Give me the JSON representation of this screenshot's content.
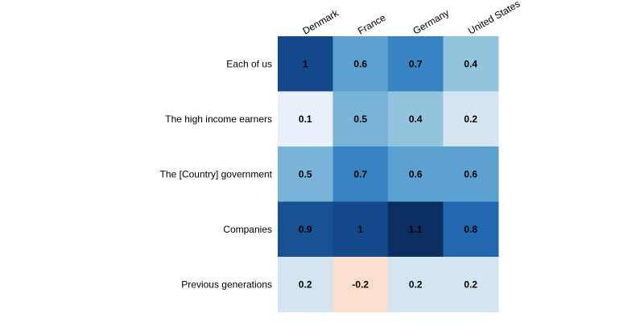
{
  "chart_data": {
    "type": "heatmap",
    "title": "",
    "xlabel": "",
    "ylabel": "",
    "columns": [
      "Denmark",
      "France",
      "Germany",
      "United States"
    ],
    "rows": [
      "Each of us",
      "The high income earners",
      "The [Country] government",
      "Companies",
      "Previous generations"
    ],
    "values": [
      [
        1,
        0.6,
        0.7,
        0.4
      ],
      [
        0.1,
        0.5,
        0.4,
        0.2
      ],
      [
        0.5,
        0.7,
        0.6,
        0.6
      ],
      [
        0.9,
        1,
        1.1,
        0.8
      ],
      [
        0.2,
        -0.2,
        0.2,
        0.2
      ]
    ],
    "value_labels": [
      [
        "1",
        "0.6",
        "0.7",
        "0.4"
      ],
      [
        "0.1",
        "0.5",
        "0.4",
        "0.2"
      ],
      [
        "0.5",
        "0.7",
        "0.6",
        "0.6"
      ],
      [
        "0.9",
        "1",
        "1.1",
        "0.8"
      ],
      [
        "0.2",
        "-0.2",
        "0.2",
        "0.2"
      ]
    ],
    "color_scale": "diverging red-white-blue",
    "legend": "none"
  }
}
